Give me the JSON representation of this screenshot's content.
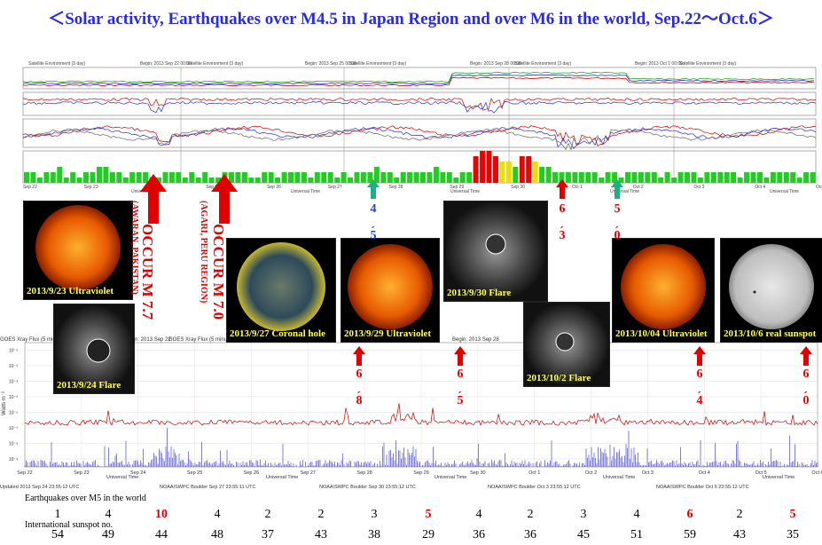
{
  "title": "＜Solar activity, Earthquakes over M4.5 in Japan Region and over M6 in the world, Sep.22～Oct.6＞",
  "colors": {
    "title": "#2a2ae0",
    "quake_red": "#e00000",
    "quake_blue": "#2040d0",
    "xray_line": "#cc0000",
    "proton_bars": "#2a2ad0",
    "kp_green": "#22cc22",
    "kp_yellow": "#eedd00",
    "kp_red": "#ee0000"
  },
  "top_chart": {
    "panel_titles": [
      "Satellite Environment (3 day)",
      "Satellite Environment (3 day)",
      "Satellite Environment (3 day)",
      "Satellite Environment (3 day)",
      "Satellite Environment (3 day)"
    ],
    "begin_labels": [
      "Begin: 2013 Sep 22 00:00",
      "Begin: 2013 Sep 25 00:00",
      "Begin: 2013 Sep 28 00:00",
      "Begin: 2013 Oct 1 00:00"
    ],
    "day_ticks": [
      "Sep 22",
      "Sep 23",
      "Sep 24",
      "Sep 25",
      "Sep 26",
      "Sep 27",
      "Sep 28",
      "Sep 29",
      "Sep 30",
      "Oct 1",
      "Oct 2",
      "Oct 3",
      "Oct 4",
      "Oct 5"
    ],
    "footer_left": [
      "Updated 2013 Sep 24 23:55:09 UTC",
      "Updated 2013 Sep 27 23:55:09 UTC"
    ],
    "footer_right": [
      "NOAA/SWPC Boulder, Oct 2013 Sep 30 23:55:09 UTC",
      "NOAA/SWPC Boulder, Oct 2013 Oct 3 23:55:09 UTC",
      "NOAA/SWPC Boulder, Oct 2013 Oct 6 23:55:09 UTC"
    ],
    "axis_title": "Universal Time"
  },
  "xray_chart": {
    "header": [
      "GOES Xray Flux (5 minute data)",
      "GOES Xray Flux (5 minute data)"
    ],
    "begin_labels": [
      "Begin: 2013 Sep 22",
      "Begin: 2013 Sep 28"
    ],
    "ylabel": "Watts m⁻²",
    "y_ticks": [
      "10⁻²",
      "10⁻³",
      "10⁻⁴",
      "10⁻⁵",
      "10⁻⁶",
      "10⁻⁷",
      "10⁻⁸",
      "10⁻⁹"
    ],
    "day_ticks": [
      "Sep 22",
      "Sep 23",
      "Sep 24",
      "Sep 25",
      "Sep 26",
      "Sep 27",
      "Sep 28",
      "Sep 29",
      "Sep 30",
      "Oct 1",
      "Oct 2",
      "Oct 3",
      "Oct 4",
      "Oct 5",
      "Oct 6"
    ],
    "footers": [
      "Updated 2013 Sep 24 23:55:12 UTC",
      "NOAA/SWPC Boulder Sep 27 23:55:11 UTC",
      "NOAA/SWPC Boulder Sep 30 23:55:12 UTC",
      "NOAA/SWPC Boulder Oct 3 23:55:12 UTC",
      "NOAA/SWPC Boulder Oct 6 23:55:12 UTC"
    ],
    "axis_title": "Universal Time"
  },
  "solar_images": [
    {
      "caption": "2013/9/23 Ultraviolet",
      "kind": "sun-orange"
    },
    {
      "caption": "2013/9/24 Flare",
      "kind": "coronagraph"
    },
    {
      "caption": "2013/9/27 Coronal hole",
      "kind": "sun-green"
    },
    {
      "caption": "2013/9/29 Ultraviolet",
      "kind": "sun-orange"
    },
    {
      "caption": "2013/9/30 Flare",
      "kind": "coronagraph"
    },
    {
      "caption": "2013/10/2 Flare",
      "kind": "coronagraph"
    },
    {
      "caption": "2013/10/04 Ultraviolet",
      "kind": "sun-orange"
    },
    {
      "caption": "2013/10/6 real sunspot",
      "kind": "sun-white"
    }
  ],
  "big_quakes": [
    {
      "text": "OCCUR M 7.7",
      "place": "(AWARAN, PAKISTAN)"
    },
    {
      "text": "OCCUR M 7.0",
      "place": "(AGARI, PERU REGION)"
    }
  ],
  "quake_markers_top": [
    {
      "value": "4.5",
      "color": "blue"
    },
    {
      "value": "6.3",
      "color": "red"
    },
    {
      "value": "5.0",
      "color": "red"
    }
  ],
  "quake_markers_mid": [
    {
      "value": "6.8"
    },
    {
      "value": "6.5"
    },
    {
      "value": "6.4"
    },
    {
      "value": "6.0"
    }
  ],
  "counts": {
    "quake_label": "Earthquakes over M5 in the world",
    "sunspot_label": "International sunspot no.",
    "quakes": [
      1,
      4,
      10,
      4,
      2,
      2,
      3,
      5,
      4,
      2,
      3,
      4,
      6,
      2,
      5
    ],
    "quakes_highlight": [
      false,
      false,
      true,
      false,
      false,
      false,
      false,
      true,
      false,
      false,
      false,
      false,
      true,
      false,
      true
    ],
    "sunspots": [
      54,
      49,
      44,
      48,
      37,
      43,
      38,
      29,
      36,
      36,
      45,
      51,
      59,
      43,
      35
    ]
  },
  "chart_data": [
    {
      "type": "bar",
      "title": "GOES Xray Flux (5 minute data)",
      "xlabel": "Universal Time",
      "ylabel": "Watts m⁻²",
      "categories": [
        "Sep 22",
        "Sep 23",
        "Sep 24",
        "Sep 25",
        "Sep 26",
        "Sep 27",
        "Sep 28",
        "Sep 29",
        "Sep 30",
        "Oct 1",
        "Oct 2",
        "Oct 3",
        "Oct 4",
        "Oct 5",
        "Oct 6"
      ],
      "series": [
        {
          "name": "Earthquakes over M5 in the world",
          "values": [
            1,
            4,
            10,
            4,
            2,
            2,
            3,
            5,
            4,
            2,
            3,
            4,
            6,
            2,
            5
          ]
        },
        {
          "name": "International sunspot no.",
          "values": [
            54,
            49,
            44,
            48,
            37,
            43,
            38,
            29,
            36,
            36,
            45,
            51,
            59,
            43,
            35
          ]
        }
      ]
    }
  ]
}
